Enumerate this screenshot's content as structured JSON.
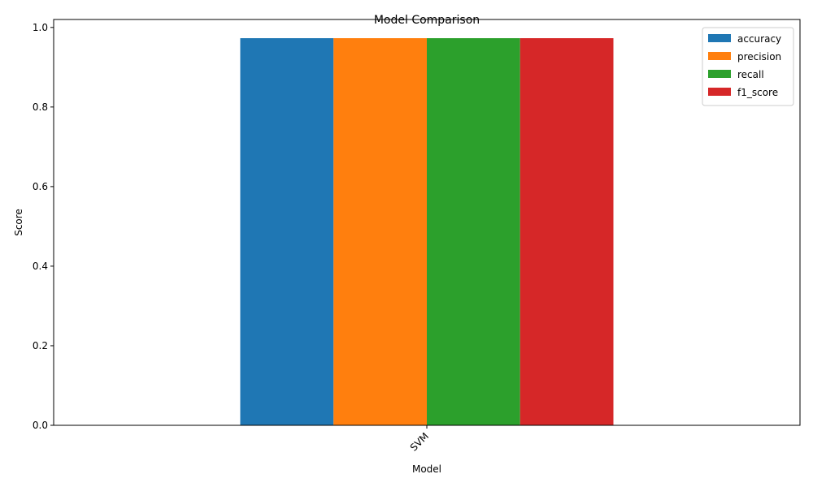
{
  "chart_data": {
    "type": "bar",
    "title": "Model Comparison",
    "xlabel": "Model",
    "ylabel": "Score",
    "categories": [
      "SVM"
    ],
    "ylim": [
      0,
      1.02
    ],
    "yticks": [
      "0.0",
      "0.2",
      "0.4",
      "0.6",
      "0.8",
      "1.0"
    ],
    "ytick_values": [
      0,
      0.2,
      0.4,
      0.6,
      0.8,
      1.0
    ],
    "series": [
      {
        "name": "accuracy",
        "color": "#1f77b4",
        "values": [
          0.973
        ]
      },
      {
        "name": "precision",
        "color": "#ff7f0e",
        "values": [
          0.973
        ]
      },
      {
        "name": "recall",
        "color": "#2ca02c",
        "values": [
          0.973
        ]
      },
      {
        "name": "f1_score",
        "color": "#d62728",
        "values": [
          0.973
        ]
      }
    ],
    "legend": "top-right",
    "grid": false
  }
}
